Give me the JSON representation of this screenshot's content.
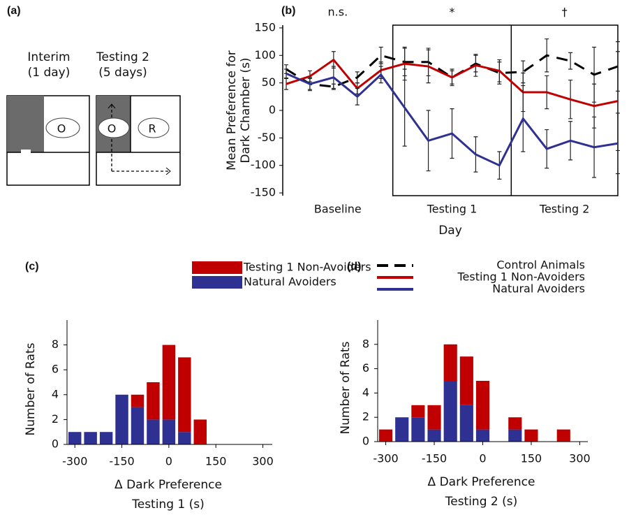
{
  "panel_a": {
    "label": "(a)",
    "left_title": [
      "Interim",
      "(1 day)"
    ],
    "right_title": [
      "Testing 2",
      "(5 days)"
    ],
    "rat_labels": [
      "O",
      "O",
      "R"
    ]
  },
  "chart_data": [
    {
      "type": "line",
      "panel_label": "(b)",
      "ylabel": [
        "Mean Preference for",
        "Dark Chamber (s)"
      ],
      "xlabel": "Day",
      "categories": [
        null,
        null,
        null,
        null,
        null,
        null,
        null,
        null,
        null,
        null,
        null,
        null,
        null,
        null,
        null
      ],
      "groups": [
        {
          "label": "Baseline",
          "annotation": "n.s."
        },
        {
          "label": "Testing 1",
          "annotation": "*"
        },
        {
          "label": "Testing 2",
          "annotation": "†"
        }
      ],
      "ylim": [
        -155,
        155
      ],
      "yticks": [
        150,
        100,
        50,
        0,
        -50,
        -100,
        -150
      ],
      "legend": "below-right",
      "series": [
        {
          "name": "Control Animals",
          "color": "#000000",
          "dashed": true,
          "values": [
            75,
            48,
            43,
            60,
            100,
            88,
            88,
            60,
            85,
            68,
            70,
            100,
            90,
            65,
            80
          ],
          "errors": [
            8,
            10,
            5,
            10,
            15,
            25,
            25,
            15,
            15,
            20,
            20,
            30,
            15,
            50,
            45
          ]
        },
        {
          "name": "Testing 1 Non-Avoiders",
          "color": "#c00000",
          "dashed": false,
          "values": [
            48,
            62,
            92,
            40,
            73,
            85,
            80,
            60,
            82,
            72,
            33,
            33,
            20,
            8,
            17
          ],
          "errors": [
            10,
            10,
            15,
            10,
            15,
            30,
            30,
            12,
            20,
            20,
            35,
            30,
            35,
            40,
            90
          ]
        },
        {
          "name": "Natural Avoiders",
          "color": "#2e3192",
          "dashed": false,
          "values": [
            67,
            48,
            60,
            25,
            65,
            5,
            -55,
            -42,
            -80,
            -100,
            -15,
            -70,
            -55,
            -67,
            -60
          ],
          "errors": [
            8,
            12,
            20,
            15,
            15,
            70,
            55,
            45,
            32,
            25,
            60,
            35,
            35,
            55,
            55
          ]
        }
      ]
    },
    {
      "type": "histogram",
      "panel_label": "(c)",
      "ylabel": "Number of Rats",
      "xlabel": [
        "Δ Dark Preference",
        "Testing 1 (s)"
      ],
      "bins": [
        -325,
        -275,
        -225,
        -175,
        -125,
        -75,
        -25,
        25,
        75,
        125
      ],
      "xlim": [
        -325,
        330
      ],
      "xticks": [
        -300,
        -150,
        0,
        150,
        300
      ],
      "ylim": [
        0,
        10
      ],
      "yticks": [
        0,
        2,
        4,
        6,
        8
      ],
      "stacked": true,
      "legend": "top",
      "series": [
        {
          "name": "Natural Avoiders",
          "color": "#2e3192",
          "values": [
            1,
            1,
            1,
            4,
            3,
            2,
            2,
            1,
            0
          ]
        },
        {
          "name": "Testing 1 Non-Avoiders",
          "color": "#c00000",
          "values": [
            0,
            0,
            0,
            0,
            1,
            3,
            6,
            6,
            2
          ]
        }
      ]
    },
    {
      "type": "histogram",
      "panel_label": "(d)",
      "ylabel": "Number of Rats",
      "xlabel": [
        "Δ Dark Preference",
        "Testing 2 (s)"
      ],
      "bins": [
        -325,
        -275,
        -225,
        -175,
        -125,
        -75,
        -25,
        25,
        75,
        125,
        175,
        225,
        275
      ],
      "xlim": [
        -325,
        325
      ],
      "xticks": [
        -300,
        -150,
        0,
        150,
        300
      ],
      "ylim": [
        0,
        10
      ],
      "yticks": [
        0,
        2,
        4,
        6,
        8
      ],
      "stacked": true,
      "series": [
        {
          "color": "#2e3192",
          "values": [
            0,
            2,
            2,
            1,
            5,
            3,
            1,
            0,
            1,
            0,
            0,
            0
          ]
        },
        {
          "color": "#c00000",
          "values": [
            1,
            0,
            1,
            2,
            3,
            4,
            4,
            0,
            1,
            1,
            0,
            1
          ]
        }
      ]
    }
  ]
}
